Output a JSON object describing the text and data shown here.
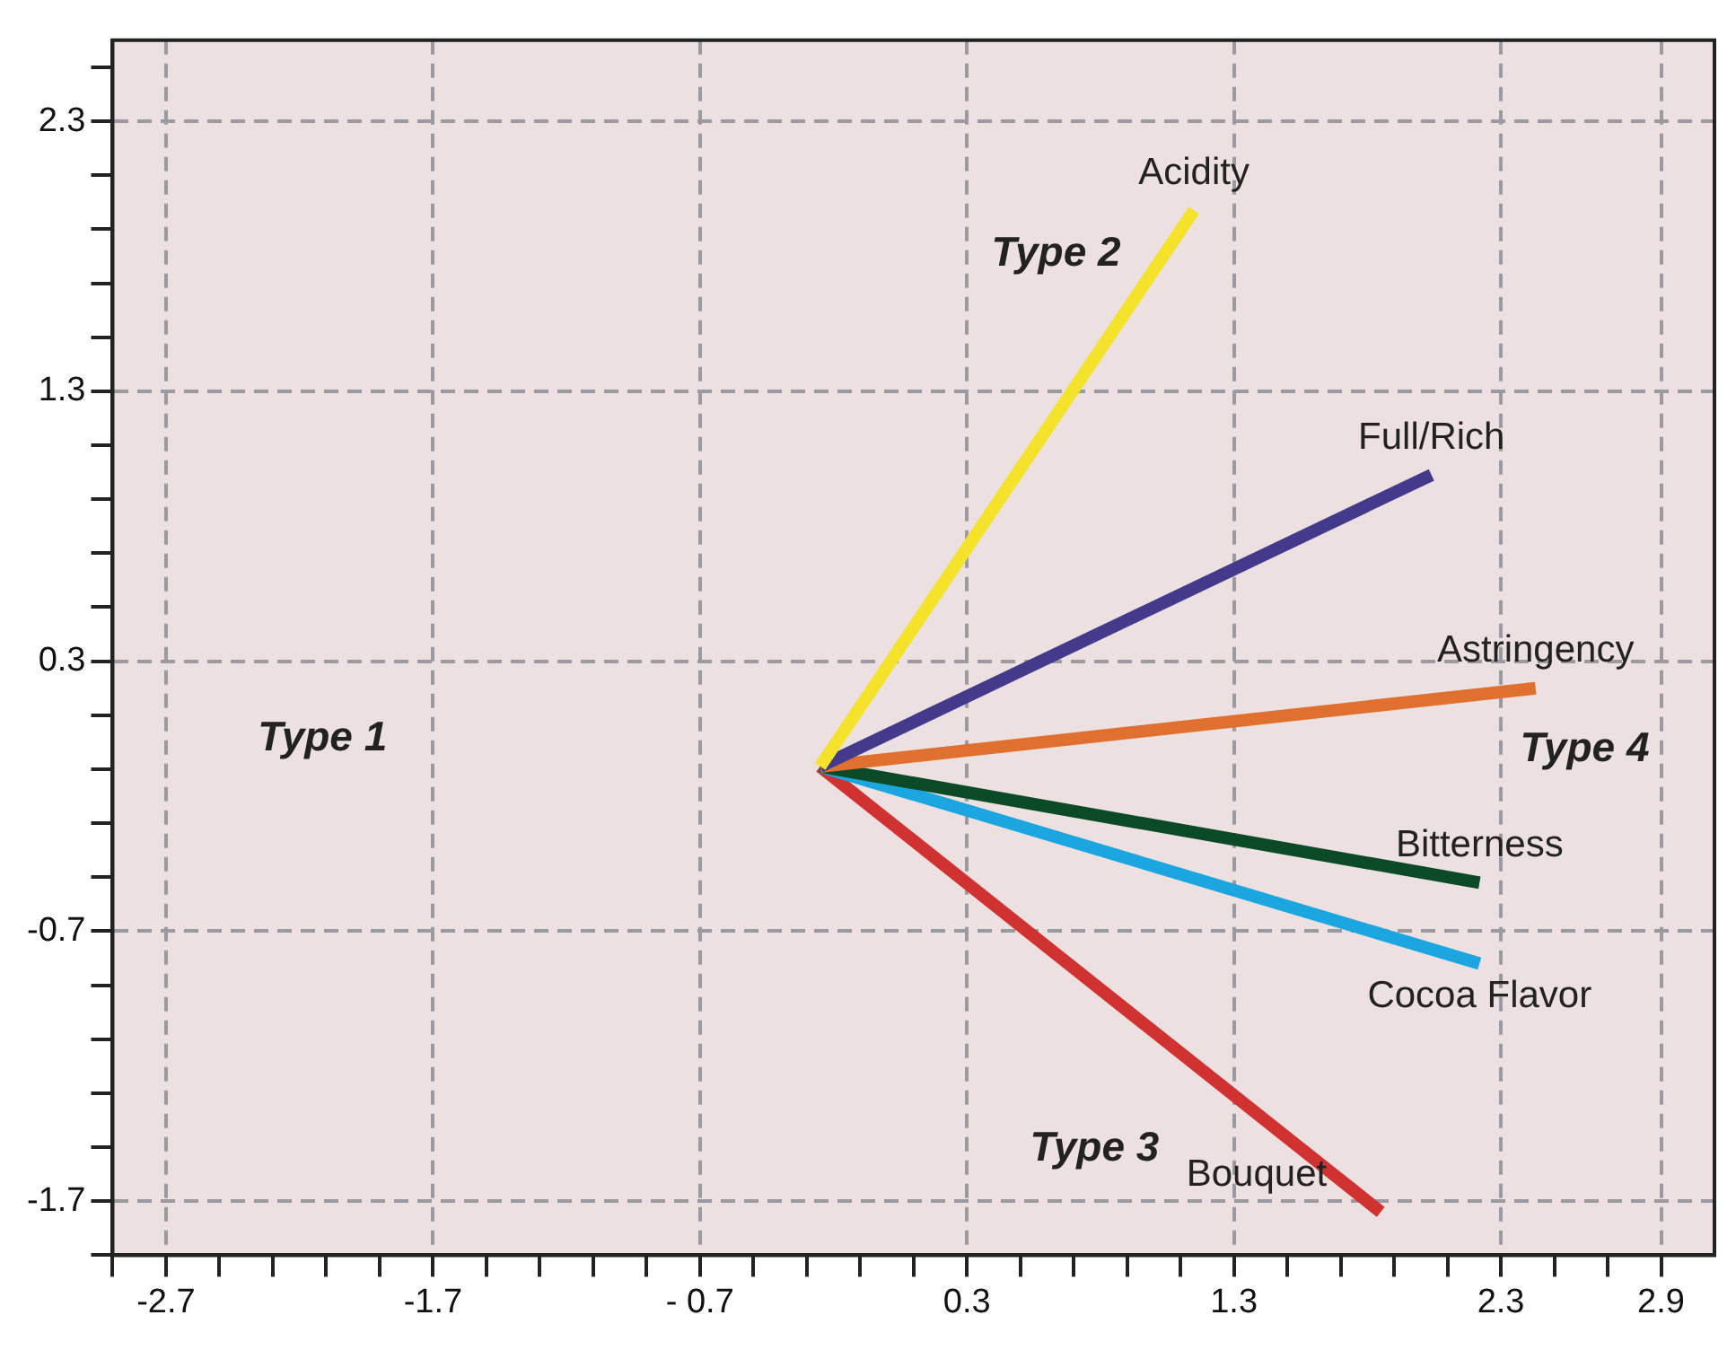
{
  "chart_data": {
    "type": "line",
    "xlim": [
      -2.9,
      3.1
    ],
    "ylim": [
      -1.9,
      2.6
    ],
    "xticks": [
      {
        "value": -2.9,
        "label": null
      },
      -2.7,
      {
        "value": -2.5,
        "label": null
      },
      {
        "value": -2.3,
        "label": null
      },
      {
        "value": -2.1,
        "label": null
      },
      {
        "value": -1.9,
        "label": null
      },
      -1.7,
      {
        "value": -1.5,
        "label": null
      },
      {
        "value": -1.3,
        "label": null
      },
      {
        "value": -1.1,
        "label": null
      },
      {
        "value": -0.9,
        "label": null
      },
      {
        "value": -0.7,
        "label": "- 0.7"
      },
      {
        "value": -0.5,
        "label": null
      },
      {
        "value": -0.3,
        "label": null
      },
      {
        "value": -0.1,
        "label": null
      },
      {
        "value": 0.1,
        "label": null
      },
      0.3,
      {
        "value": 0.5,
        "label": null
      },
      {
        "value": 0.7,
        "label": null
      },
      {
        "value": 0.9,
        "label": null
      },
      {
        "value": 1.1,
        "label": null
      },
      1.3,
      {
        "value": 1.5,
        "label": null
      },
      {
        "value": 1.7,
        "label": null
      },
      {
        "value": 1.9,
        "label": null
      },
      {
        "value": 2.1,
        "label": null
      },
      2.3,
      {
        "value": 2.5,
        "label": null
      },
      {
        "value": 2.7,
        "label": null
      },
      2.9
    ],
    "yticks": [
      {
        "value": -1.9,
        "label": null
      },
      -1.7,
      {
        "value": -1.5,
        "label": null
      },
      {
        "value": -1.3,
        "label": null
      },
      {
        "value": -1.1,
        "label": null
      },
      {
        "value": -0.9,
        "label": null
      },
      -0.7,
      {
        "value": -0.5,
        "label": null
      },
      {
        "value": -0.3,
        "label": null
      },
      {
        "value": -0.1,
        "label": null
      },
      {
        "value": 0.1,
        "label": null
      },
      0.3,
      {
        "value": 0.5,
        "label": null
      },
      {
        "value": 0.7,
        "label": null
      },
      {
        "value": 0.9,
        "label": null
      },
      {
        "value": 1.1,
        "label": null
      },
      1.3,
      {
        "value": 1.5,
        "label": null
      },
      {
        "value": 1.7,
        "label": null
      },
      {
        "value": 1.9,
        "label": null
      },
      {
        "value": 2.1,
        "label": null
      },
      2.3,
      {
        "value": 2.5,
        "label": null
      }
    ],
    "grid": true,
    "legend": false,
    "marker": "none",
    "line_style": "solid",
    "series": [
      {
        "name": "Acidity",
        "color": "#f5e22a",
        "x": [
          -0.25,
          1.15
        ],
        "values": [
          -0.09,
          1.97
        ]
      },
      {
        "name": "Full/Rich",
        "color": "#433a8c",
        "x": [
          -0.25,
          2.04
        ],
        "values": [
          -0.09,
          0.99
        ]
      },
      {
        "name": "Astringency",
        "color": "#e07030",
        "x": [
          -0.25,
          2.43
        ],
        "values": [
          -0.09,
          0.2
        ]
      },
      {
        "name": "Bitterness",
        "color": "#0b4a26",
        "x": [
          -0.25,
          2.22
        ],
        "values": [
          -0.09,
          -0.52
        ]
      },
      {
        "name": "Cocoa Flavor",
        "color": "#1ba6e0",
        "x": [
          -0.25,
          2.22
        ],
        "values": [
          -0.09,
          -0.82
        ]
      },
      {
        "name": "Bouquet",
        "color": "#d03232",
        "x": [
          -0.25,
          1.85
        ],
        "values": [
          -0.09,
          -1.74
        ]
      }
    ],
    "annotations": [
      "Type 1",
      "Type 2",
      "Type 3",
      "Type 4"
    ]
  }
}
